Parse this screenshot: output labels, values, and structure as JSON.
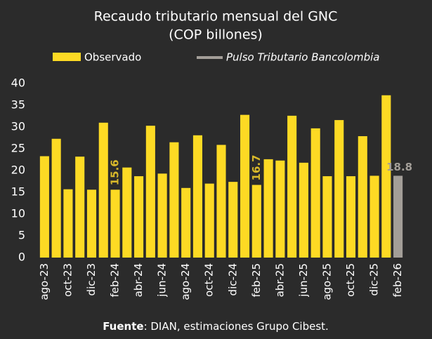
{
  "chart_data": {
    "type": "bar",
    "title": "Recaudo tributario mensual del GNC",
    "subtitle": "(COP billones)",
    "source_label": "Fuente",
    "source": ": DIAN, estimaciones Grupo Cibest.",
    "categories": [
      "ago-23",
      null,
      "oct-23",
      null,
      "dic-23",
      null,
      "feb-24",
      null,
      "abr-24",
      null,
      "jun-24",
      null,
      "ago-24",
      null,
      "oct-24",
      null,
      "dic-24",
      null,
      "feb-25",
      null,
      "abr-25",
      null,
      "jun-25",
      null,
      "ago-25",
      null,
      "oct-25",
      null,
      "dic-25",
      null,
      "feb-26"
    ],
    "series": [
      {
        "name": "Observado",
        "color": "#fdda24",
        "values": [
          23.3,
          27.3,
          15.7,
          23.2,
          15.6,
          31.0,
          15.6,
          20.7,
          18.7,
          30.3,
          19.3,
          26.5,
          16.0,
          28.1,
          17.0,
          25.9,
          17.4,
          32.8,
          16.7,
          22.6,
          22.3,
          32.6,
          21.8,
          29.7,
          18.7,
          31.6,
          18.7,
          27.9,
          18.8,
          37.3,
          null
        ],
        "value_labels": [
          null,
          null,
          null,
          null,
          null,
          null,
          "15.6",
          null,
          null,
          null,
          null,
          null,
          null,
          null,
          null,
          null,
          null,
          null,
          "16.7",
          null,
          null,
          null,
          null,
          null,
          null,
          null,
          null,
          null,
          null,
          null,
          null
        ]
      },
      {
        "name": "Pulso Tributario Bancolombia",
        "color": "#a39e98",
        "values": [
          null,
          null,
          null,
          null,
          null,
          null,
          null,
          null,
          null,
          null,
          null,
          null,
          null,
          null,
          null,
          null,
          null,
          null,
          null,
          null,
          null,
          null,
          null,
          null,
          null,
          null,
          null,
          null,
          null,
          null,
          18.8
        ],
        "value_labels": [
          null,
          null,
          null,
          null,
          null,
          null,
          null,
          null,
          null,
          null,
          null,
          null,
          null,
          null,
          null,
          null,
          null,
          null,
          null,
          null,
          null,
          null,
          null,
          null,
          null,
          null,
          null,
          null,
          null,
          null,
          "18.8"
        ]
      }
    ],
    "ylim": [
      0,
      40
    ],
    "yticks": [
      0,
      5,
      10,
      15,
      20,
      25,
      30,
      35,
      40
    ],
    "grid": false
  }
}
